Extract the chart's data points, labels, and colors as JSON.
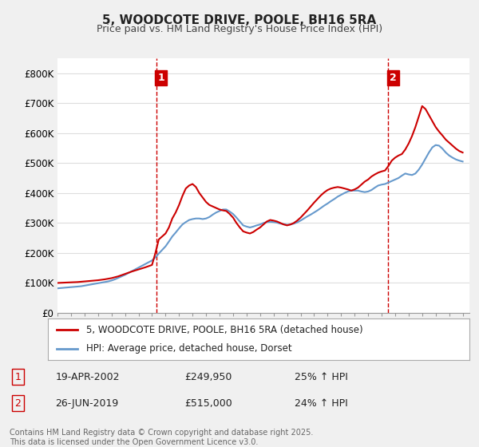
{
  "title": "5, WOODCOTE DRIVE, POOLE, BH16 5RA",
  "subtitle": "Price paid vs. HM Land Registry's House Price Index (HPI)",
  "ylim": [
    0,
    850000
  ],
  "yticks": [
    0,
    100000,
    200000,
    300000,
    400000,
    500000,
    600000,
    700000,
    800000
  ],
  "ytick_labels": [
    "£0",
    "£100K",
    "£200K",
    "£300K",
    "£400K",
    "£500K",
    "£600K",
    "£700K",
    "£800K"
  ],
  "background_color": "#f0f0f0",
  "plot_bg_color": "#ffffff",
  "grid_color": "#dddddd",
  "red_line_color": "#cc0000",
  "blue_line_color": "#6699cc",
  "vline_color": "#cc0000",
  "legend_label_red": "5, WOODCOTE DRIVE, POOLE, BH16 5RA (detached house)",
  "legend_label_blue": "HPI: Average price, detached house, Dorset",
  "sale1_date": "19-APR-2002",
  "sale1_price": "£249,950",
  "sale1_hpi": "25% ↑ HPI",
  "sale2_date": "26-JUN-2019",
  "sale2_price": "£515,000",
  "sale2_hpi": "24% ↑ HPI",
  "footnote": "Contains HM Land Registry data © Crown copyright and database right 2025.\nThis data is licensed under the Open Government Licence v3.0.",
  "hpi_years": [
    1995.0,
    1995.25,
    1995.5,
    1995.75,
    1996.0,
    1996.25,
    1996.5,
    1996.75,
    1997.0,
    1997.25,
    1997.5,
    1997.75,
    1998.0,
    1998.25,
    1998.5,
    1998.75,
    1999.0,
    1999.25,
    1999.5,
    1999.75,
    2000.0,
    2000.25,
    2000.5,
    2000.75,
    2001.0,
    2001.25,
    2001.5,
    2001.75,
    2002.0,
    2002.25,
    2002.5,
    2002.75,
    2003.0,
    2003.25,
    2003.5,
    2003.75,
    2004.0,
    2004.25,
    2004.5,
    2004.75,
    2005.0,
    2005.25,
    2005.5,
    2005.75,
    2006.0,
    2006.25,
    2006.5,
    2006.75,
    2007.0,
    2007.25,
    2007.5,
    2007.75,
    2008.0,
    2008.25,
    2008.5,
    2008.75,
    2009.0,
    2009.25,
    2009.5,
    2009.75,
    2010.0,
    2010.25,
    2010.5,
    2010.75,
    2011.0,
    2011.25,
    2011.5,
    2011.75,
    2012.0,
    2012.25,
    2012.5,
    2012.75,
    2013.0,
    2013.25,
    2013.5,
    2013.75,
    2014.0,
    2014.25,
    2014.5,
    2014.75,
    2015.0,
    2015.25,
    2015.5,
    2015.75,
    2016.0,
    2016.25,
    2016.5,
    2016.75,
    2017.0,
    2017.25,
    2017.5,
    2017.75,
    2018.0,
    2018.25,
    2018.5,
    2018.75,
    2019.0,
    2019.25,
    2019.5,
    2019.75,
    2020.0,
    2020.25,
    2020.5,
    2020.75,
    2021.0,
    2021.25,
    2021.5,
    2021.75,
    2022.0,
    2022.25,
    2022.5,
    2022.75,
    2023.0,
    2023.25,
    2023.5,
    2023.75,
    2024.0,
    2024.25,
    2024.5,
    2024.75,
    2025.0
  ],
  "hpi_values": [
    82000,
    83000,
    84000,
    85000,
    86000,
    87000,
    88000,
    89000,
    91000,
    93000,
    95000,
    97000,
    99000,
    101000,
    103000,
    105000,
    108000,
    112000,
    117000,
    122000,
    127000,
    133000,
    139000,
    145000,
    151000,
    157000,
    163000,
    169000,
    175000,
    185000,
    198000,
    210000,
    222000,
    238000,
    255000,
    268000,
    282000,
    295000,
    303000,
    310000,
    313000,
    315000,
    315000,
    313000,
    315000,
    320000,
    328000,
    335000,
    340000,
    345000,
    345000,
    338000,
    330000,
    318000,
    305000,
    292000,
    288000,
    285000,
    288000,
    292000,
    295000,
    300000,
    303000,
    304000,
    303000,
    301000,
    298000,
    296000,
    294000,
    295000,
    298000,
    302000,
    308000,
    315000,
    322000,
    328000,
    335000,
    342000,
    350000,
    358000,
    365000,
    373000,
    380000,
    388000,
    394000,
    400000,
    405000,
    408000,
    408000,
    408000,
    405000,
    403000,
    405000,
    410000,
    418000,
    425000,
    428000,
    430000,
    435000,
    440000,
    445000,
    450000,
    458000,
    465000,
    462000,
    460000,
    465000,
    478000,
    495000,
    515000,
    535000,
    552000,
    560000,
    558000,
    548000,
    535000,
    525000,
    518000,
    512000,
    508000,
    505000
  ],
  "red_years": [
    1995.0,
    1995.5,
    1996.0,
    1996.5,
    1997.0,
    1997.5,
    1998.0,
    1998.5,
    1999.0,
    1999.5,
    2000.0,
    2000.5,
    2001.0,
    2001.5,
    2002.0,
    2002.25,
    2002.5,
    2002.75,
    2003.0,
    2003.25,
    2003.5,
    2003.75,
    2004.0,
    2004.25,
    2004.5,
    2004.75,
    2005.0,
    2005.25,
    2005.5,
    2005.75,
    2006.0,
    2006.25,
    2006.5,
    2006.75,
    2007.0,
    2007.25,
    2007.5,
    2007.75,
    2008.0,
    2008.25,
    2008.5,
    2008.75,
    2009.0,
    2009.25,
    2009.5,
    2009.75,
    2010.0,
    2010.25,
    2010.5,
    2010.75,
    2011.0,
    2011.25,
    2011.5,
    2011.75,
    2012.0,
    2012.25,
    2012.5,
    2012.75,
    2013.0,
    2013.25,
    2013.5,
    2013.75,
    2014.0,
    2014.25,
    2014.5,
    2014.75,
    2015.0,
    2015.25,
    2015.5,
    2015.75,
    2016.0,
    2016.25,
    2016.5,
    2016.75,
    2017.0,
    2017.25,
    2017.5,
    2017.75,
    2018.0,
    2018.25,
    2018.5,
    2018.75,
    2019.0,
    2019.25,
    2019.5,
    2019.75,
    2020.0,
    2020.25,
    2020.5,
    2020.75,
    2021.0,
    2021.25,
    2021.5,
    2021.75,
    2022.0,
    2022.25,
    2022.5,
    2022.75,
    2023.0,
    2023.25,
    2023.5,
    2023.75,
    2024.0,
    2024.25,
    2024.5,
    2024.75,
    2025.0
  ],
  "red_values": [
    100000,
    101000,
    102000,
    103000,
    105000,
    107000,
    109000,
    112000,
    116000,
    122000,
    130000,
    138000,
    145000,
    152000,
    160000,
    200000,
    245000,
    255000,
    265000,
    285000,
    315000,
    335000,
    360000,
    390000,
    415000,
    425000,
    430000,
    420000,
    400000,
    385000,
    370000,
    360000,
    355000,
    350000,
    345000,
    342000,
    340000,
    330000,
    318000,
    300000,
    285000,
    272000,
    268000,
    265000,
    270000,
    278000,
    285000,
    295000,
    305000,
    310000,
    308000,
    305000,
    300000,
    295000,
    292000,
    295000,
    300000,
    308000,
    318000,
    330000,
    342000,
    355000,
    368000,
    380000,
    392000,
    402000,
    410000,
    415000,
    418000,
    420000,
    418000,
    415000,
    412000,
    408000,
    412000,
    418000,
    428000,
    438000,
    445000,
    455000,
    462000,
    468000,
    472000,
    475000,
    490000,
    508000,
    518000,
    525000,
    530000,
    545000,
    565000,
    590000,
    620000,
    655000,
    690000,
    680000,
    660000,
    640000,
    620000,
    605000,
    592000,
    578000,
    568000,
    558000,
    548000,
    540000,
    535000
  ],
  "vline1_x": 2002.3,
  "vline2_x": 2019.5,
  "xmin": 1995,
  "xmax": 2025.5
}
